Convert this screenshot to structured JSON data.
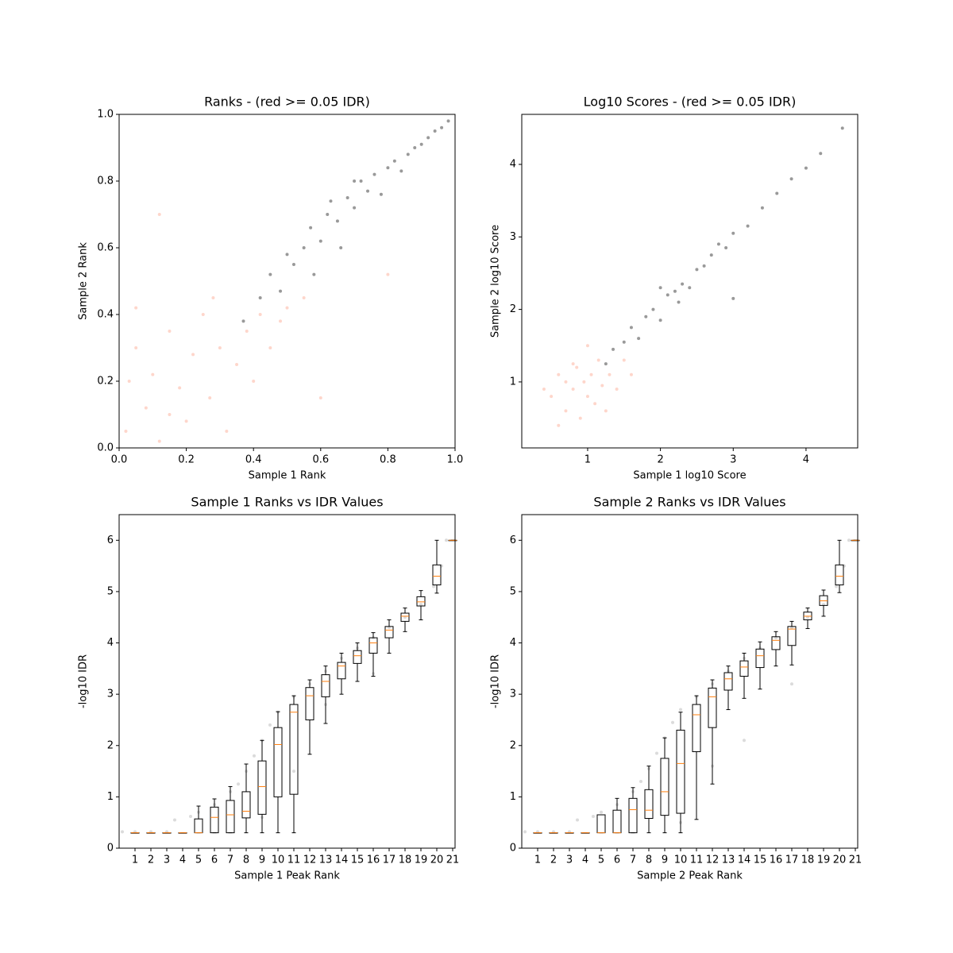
{
  "chart_data": [
    {
      "type": "scatter",
      "title": "Ranks - (red >= 0.05 IDR)",
      "xlabel": "Sample 1 Rank",
      "ylabel": "Sample 2 Rank",
      "xlim": [
        0,
        1
      ],
      "ylim": [
        0,
        1
      ],
      "xticks": [
        {
          "value": 0,
          "label": "0.0"
        },
        {
          "value": 0.2,
          "label": "0.2"
        },
        {
          "value": 0.4,
          "label": "0.4"
        },
        {
          "value": 0.6,
          "label": "0.6"
        },
        {
          "value": 0.8,
          "label": "0.8"
        },
        {
          "value": 1,
          "label": "1.0"
        }
      ],
      "yticks": [
        {
          "value": 0,
          "label": "0.0"
        },
        {
          "value": 0.2,
          "label": "0.2"
        },
        {
          "value": 0.4,
          "label": "0.4"
        },
        {
          "value": 0.6,
          "label": "0.6"
        },
        {
          "value": 0.8,
          "label": "0.8"
        },
        {
          "value": 1,
          "label": "1.0"
        }
      ],
      "series": [
        {
          "color": "#fb8a6a",
          "opacity": 0.35,
          "x": [
            0.02,
            0.05,
            0.08,
            0.1,
            0.12,
            0.15,
            0.18,
            0.2,
            0.22,
            0.25,
            0.27,
            0.3,
            0.32,
            0.35,
            0.38,
            0.4,
            0.42,
            0.45,
            0.48,
            0.5,
            0.05,
            0.15,
            0.28,
            0.55,
            0.03,
            0.6,
            0.12,
            0.8
          ],
          "values": [
            0.05,
            0.3,
            0.12,
            0.22,
            0.02,
            0.35,
            0.18,
            0.08,
            0.28,
            0.4,
            0.15,
            0.3,
            0.05,
            0.25,
            0.35,
            0.2,
            0.4,
            0.3,
            0.38,
            0.42,
            0.42,
            0.1,
            0.45,
            0.45,
            0.2,
            0.15,
            0.7,
            0.52
          ]
        },
        {
          "color": "#333333",
          "opacity": 0.5,
          "x": [
            0.37,
            0.42,
            0.45,
            0.48,
            0.5,
            0.52,
            0.55,
            0.57,
            0.6,
            0.62,
            0.63,
            0.65,
            0.68,
            0.7,
            0.72,
            0.74,
            0.76,
            0.78,
            0.8,
            0.82,
            0.84,
            0.86,
            0.88,
            0.9,
            0.92,
            0.94,
            0.96,
            0.98,
            0.58,
            0.66,
            0.7
          ],
          "values": [
            0.38,
            0.45,
            0.52,
            0.47,
            0.58,
            0.55,
            0.6,
            0.66,
            0.62,
            0.7,
            0.74,
            0.68,
            0.75,
            0.72,
            0.8,
            0.77,
            0.82,
            0.76,
            0.84,
            0.86,
            0.83,
            0.88,
            0.9,
            0.91,
            0.93,
            0.95,
            0.96,
            0.98,
            0.52,
            0.6,
            0.8
          ]
        }
      ]
    },
    {
      "type": "scatter",
      "title": "Log10 Scores - (red >= 0.05 IDR)",
      "xlabel": "Sample 1 log10 Score",
      "ylabel": "Sample 2 log10 Score",
      "xlim": [
        0.095,
        4.71
      ],
      "ylim": [
        0.09,
        4.69
      ],
      "xticks": [
        1,
        2,
        3,
        4
      ],
      "yticks": [
        1,
        2,
        3,
        4
      ],
      "series": [
        {
          "color": "#fb8a6a",
          "opacity": 0.35,
          "x": [
            0.5,
            0.6,
            0.7,
            0.8,
            0.85,
            0.9,
            0.95,
            1.0,
            1.05,
            1.1,
            1.15,
            1.2,
            1.3,
            1.4,
            1.5,
            0.7,
            0.4,
            0.6,
            1.0,
            1.6,
            0.8,
            1.25
          ],
          "values": [
            0.8,
            1.1,
            0.6,
            0.9,
            1.2,
            0.5,
            1.0,
            0.8,
            1.1,
            0.7,
            1.3,
            0.95,
            1.1,
            0.9,
            1.3,
            1.0,
            0.9,
            0.4,
            1.5,
            1.1,
            1.25,
            0.6
          ]
        },
        {
          "color": "#333333",
          "opacity": 0.5,
          "x": [
            1.25,
            1.35,
            1.5,
            1.6,
            1.7,
            1.8,
            1.9,
            2.0,
            2.1,
            2.2,
            2.25,
            2.3,
            2.4,
            2.5,
            2.6,
            2.7,
            2.8,
            2.9,
            3.0,
            3.2,
            3.4,
            3.6,
            3.8,
            4.0,
            4.2,
            4.5,
            2.0,
            3.0
          ],
          "values": [
            1.25,
            1.45,
            1.55,
            1.75,
            1.6,
            1.9,
            2.0,
            1.85,
            2.2,
            2.25,
            2.1,
            2.35,
            2.3,
            2.55,
            2.6,
            2.75,
            2.9,
            2.85,
            3.05,
            3.15,
            3.4,
            3.6,
            3.8,
            3.95,
            4.15,
            4.5,
            2.3,
            2.15
          ]
        }
      ]
    },
    {
      "type": "box",
      "title": "Sample 1 Ranks vs IDR Values",
      "xlabel": "Sample 1 Peak Rank",
      "ylabel": "-log10 IDR",
      "xlim": [
        0,
        21.15
      ],
      "ylim": [
        0,
        6.5
      ],
      "xticks": [
        1,
        2,
        3,
        4,
        5,
        6,
        7,
        8,
        9,
        10,
        11,
        12,
        13,
        14,
        15,
        16,
        17,
        18,
        19,
        20,
        21
      ],
      "yticks": [
        0,
        1,
        2,
        3,
        4,
        5,
        6
      ],
      "series": [
        {
          "color": "#999999",
          "opacity": 0.35,
          "x": [
            0.2,
            1,
            2,
            3,
            3.5,
            4.5,
            5,
            6,
            7,
            7.5,
            8,
            8.5,
            9,
            9.5,
            10,
            11,
            12,
            13,
            14,
            15,
            16,
            17,
            18,
            19,
            19.8,
            20.3,
            20.6,
            9,
            11,
            13,
            16
          ],
          "values": [
            0.32,
            0.32,
            0.32,
            0.32,
            0.55,
            0.62,
            0.7,
            0.85,
            1.1,
            1.25,
            1.5,
            1.8,
            2.1,
            2.4,
            2.65,
            2.95,
            3.2,
            3.45,
            3.7,
            3.9,
            4.1,
            4.3,
            4.5,
            4.75,
            5.1,
            5.5,
            6.0,
            0.6,
            1.5,
            2.8,
            3.4
          ]
        }
      ],
      "positions": [
        1,
        2,
        3,
        4,
        5,
        6,
        7,
        8,
        9,
        10,
        11,
        12,
        13,
        14,
        15,
        16,
        17,
        18,
        19,
        20,
        21
      ],
      "boxes": [
        {
          "whislo": 0.3,
          "q1": 0.3,
          "med": 0.3,
          "q3": 0.3,
          "whishi": 0.3
        },
        {
          "whislo": 0.3,
          "q1": 0.3,
          "med": 0.3,
          "q3": 0.3,
          "whishi": 0.3
        },
        {
          "whislo": 0.3,
          "q1": 0.3,
          "med": 0.3,
          "q3": 0.3,
          "whishi": 0.3
        },
        {
          "whislo": 0.3,
          "q1": 0.3,
          "med": 0.3,
          "q3": 0.3,
          "whishi": 0.3
        },
        {
          "whislo": 0.3,
          "q1": 0.3,
          "med": 0.3,
          "q3": 0.57,
          "whishi": 0.82
        },
        {
          "whislo": 0.3,
          "q1": 0.3,
          "med": 0.6,
          "q3": 0.8,
          "whishi": 0.96
        },
        {
          "whislo": 0.3,
          "q1": 0.3,
          "med": 0.65,
          "q3": 0.93,
          "whishi": 1.2
        },
        {
          "whislo": 0.3,
          "q1": 0.59,
          "med": 0.72,
          "q3": 1.1,
          "whishi": 1.64
        },
        {
          "whislo": 0.3,
          "q1": 0.66,
          "med": 1.2,
          "q3": 1.7,
          "whishi": 2.1
        },
        {
          "whislo": 0.3,
          "q1": 1.0,
          "med": 2.02,
          "q3": 2.35,
          "whishi": 2.66
        },
        {
          "whislo": 0.3,
          "q1": 1.05,
          "med": 2.65,
          "q3": 2.8,
          "whishi": 2.97
        },
        {
          "whislo": 1.83,
          "q1": 2.5,
          "med": 2.97,
          "q3": 3.13,
          "whishi": 3.28
        },
        {
          "whislo": 2.43,
          "q1": 2.95,
          "med": 3.25,
          "q3": 3.38,
          "whishi": 3.55
        },
        {
          "whislo": 3.0,
          "q1": 3.3,
          "med": 3.55,
          "q3": 3.62,
          "whishi": 3.8
        },
        {
          "whislo": 3.25,
          "q1": 3.6,
          "med": 3.75,
          "q3": 3.85,
          "whishi": 4.0
        },
        {
          "whislo": 3.35,
          "q1": 3.8,
          "med": 4.0,
          "q3": 4.1,
          "whishi": 4.2
        },
        {
          "whislo": 3.8,
          "q1": 4.1,
          "med": 4.25,
          "q3": 4.32,
          "whishi": 4.45
        },
        {
          "whislo": 4.22,
          "q1": 4.42,
          "med": 4.52,
          "q3": 4.58,
          "whishi": 4.68
        },
        {
          "whislo": 4.45,
          "q1": 4.72,
          "med": 4.8,
          "q3": 4.9,
          "whishi": 5.02
        },
        {
          "whislo": 4.97,
          "q1": 5.13,
          "med": 5.3,
          "q3": 5.52,
          "whishi": 6.0
        },
        {
          "whislo": 6.0,
          "q1": 6.0,
          "med": 6.0,
          "q3": 6.0,
          "whishi": 6.0
        }
      ]
    },
    {
      "type": "box",
      "title": "Sample 2 Ranks vs IDR Values",
      "xlabel": "Sample 2 Peak Rank",
      "ylabel": "-log10 IDR",
      "xlim": [
        0,
        21.15
      ],
      "ylim": [
        0,
        6.5
      ],
      "xticks": [
        1,
        2,
        3,
        4,
        5,
        6,
        7,
        8,
        9,
        10,
        11,
        12,
        13,
        14,
        15,
        16,
        17,
        18,
        19,
        20,
        21
      ],
      "yticks": [
        0,
        1,
        2,
        3,
        4,
        5,
        6
      ],
      "series": [
        {
          "color": "#999999",
          "opacity": 0.35,
          "x": [
            0.2,
            1,
            2,
            3,
            3.5,
            4.5,
            5,
            6,
            7,
            7.5,
            8,
            8.5,
            9,
            9.5,
            10,
            11,
            12,
            13,
            14,
            15,
            16,
            17,
            18,
            19,
            19.8,
            20.3,
            20.6,
            10,
            12,
            14,
            17
          ],
          "values": [
            0.32,
            0.32,
            0.32,
            0.32,
            0.55,
            0.62,
            0.7,
            0.85,
            1.1,
            1.3,
            1.55,
            1.85,
            2.15,
            2.45,
            2.7,
            2.95,
            3.2,
            3.45,
            3.7,
            3.9,
            4.1,
            4.3,
            4.5,
            4.75,
            5.1,
            5.5,
            6.0,
            0.5,
            1.6,
            2.1,
            3.2
          ]
        }
      ],
      "positions": [
        1,
        2,
        3,
        4,
        5,
        6,
        7,
        8,
        9,
        10,
        11,
        12,
        13,
        14,
        15,
        16,
        17,
        18,
        19,
        20,
        21
      ],
      "boxes": [
        {
          "whislo": 0.3,
          "q1": 0.3,
          "med": 0.3,
          "q3": 0.3,
          "whishi": 0.3
        },
        {
          "whislo": 0.3,
          "q1": 0.3,
          "med": 0.3,
          "q3": 0.3,
          "whishi": 0.3
        },
        {
          "whislo": 0.3,
          "q1": 0.3,
          "med": 0.3,
          "q3": 0.3,
          "whishi": 0.3
        },
        {
          "whislo": 0.3,
          "q1": 0.3,
          "med": 0.3,
          "q3": 0.3,
          "whishi": 0.3
        },
        {
          "whislo": 0.3,
          "q1": 0.3,
          "med": 0.3,
          "q3": 0.65,
          "whishi": 0.65
        },
        {
          "whislo": 0.3,
          "q1": 0.3,
          "med": 0.3,
          "q3": 0.74,
          "whishi": 0.97
        },
        {
          "whislo": 0.3,
          "q1": 0.3,
          "med": 0.75,
          "q3": 0.97,
          "whishi": 1.18
        },
        {
          "whislo": 0.3,
          "q1": 0.58,
          "med": 0.74,
          "q3": 1.14,
          "whishi": 1.6
        },
        {
          "whislo": 0.3,
          "q1": 0.64,
          "med": 1.1,
          "q3": 1.75,
          "whishi": 2.15
        },
        {
          "whislo": 0.3,
          "q1": 0.68,
          "med": 1.65,
          "q3": 2.3,
          "whishi": 2.65
        },
        {
          "whislo": 0.56,
          "q1": 1.88,
          "med": 2.6,
          "q3": 2.8,
          "whishi": 2.97
        },
        {
          "whislo": 1.25,
          "q1": 2.35,
          "med": 2.95,
          "q3": 3.12,
          "whishi": 3.28
        },
        {
          "whislo": 2.7,
          "q1": 3.08,
          "med": 3.3,
          "q3": 3.42,
          "whishi": 3.55
        },
        {
          "whislo": 2.92,
          "q1": 3.35,
          "med": 3.53,
          "q3": 3.65,
          "whishi": 3.8
        },
        {
          "whislo": 3.1,
          "q1": 3.52,
          "med": 3.75,
          "q3": 3.88,
          "whishi": 4.02
        },
        {
          "whislo": 3.55,
          "q1": 3.87,
          "med": 4.05,
          "q3": 4.12,
          "whishi": 4.22
        },
        {
          "whislo": 3.57,
          "q1": 3.95,
          "med": 4.27,
          "q3": 4.32,
          "whishi": 4.42
        },
        {
          "whislo": 4.28,
          "q1": 4.45,
          "med": 4.52,
          "q3": 4.6,
          "whishi": 4.68
        },
        {
          "whislo": 4.52,
          "q1": 4.73,
          "med": 4.82,
          "q3": 4.92,
          "whishi": 5.03
        },
        {
          "whislo": 4.98,
          "q1": 5.13,
          "med": 5.3,
          "q3": 5.52,
          "whishi": 6.0
        },
        {
          "whislo": 6.0,
          "q1": 6.0,
          "med": 6.0,
          "q3": 6.0,
          "whishi": 6.0
        }
      ]
    }
  ]
}
